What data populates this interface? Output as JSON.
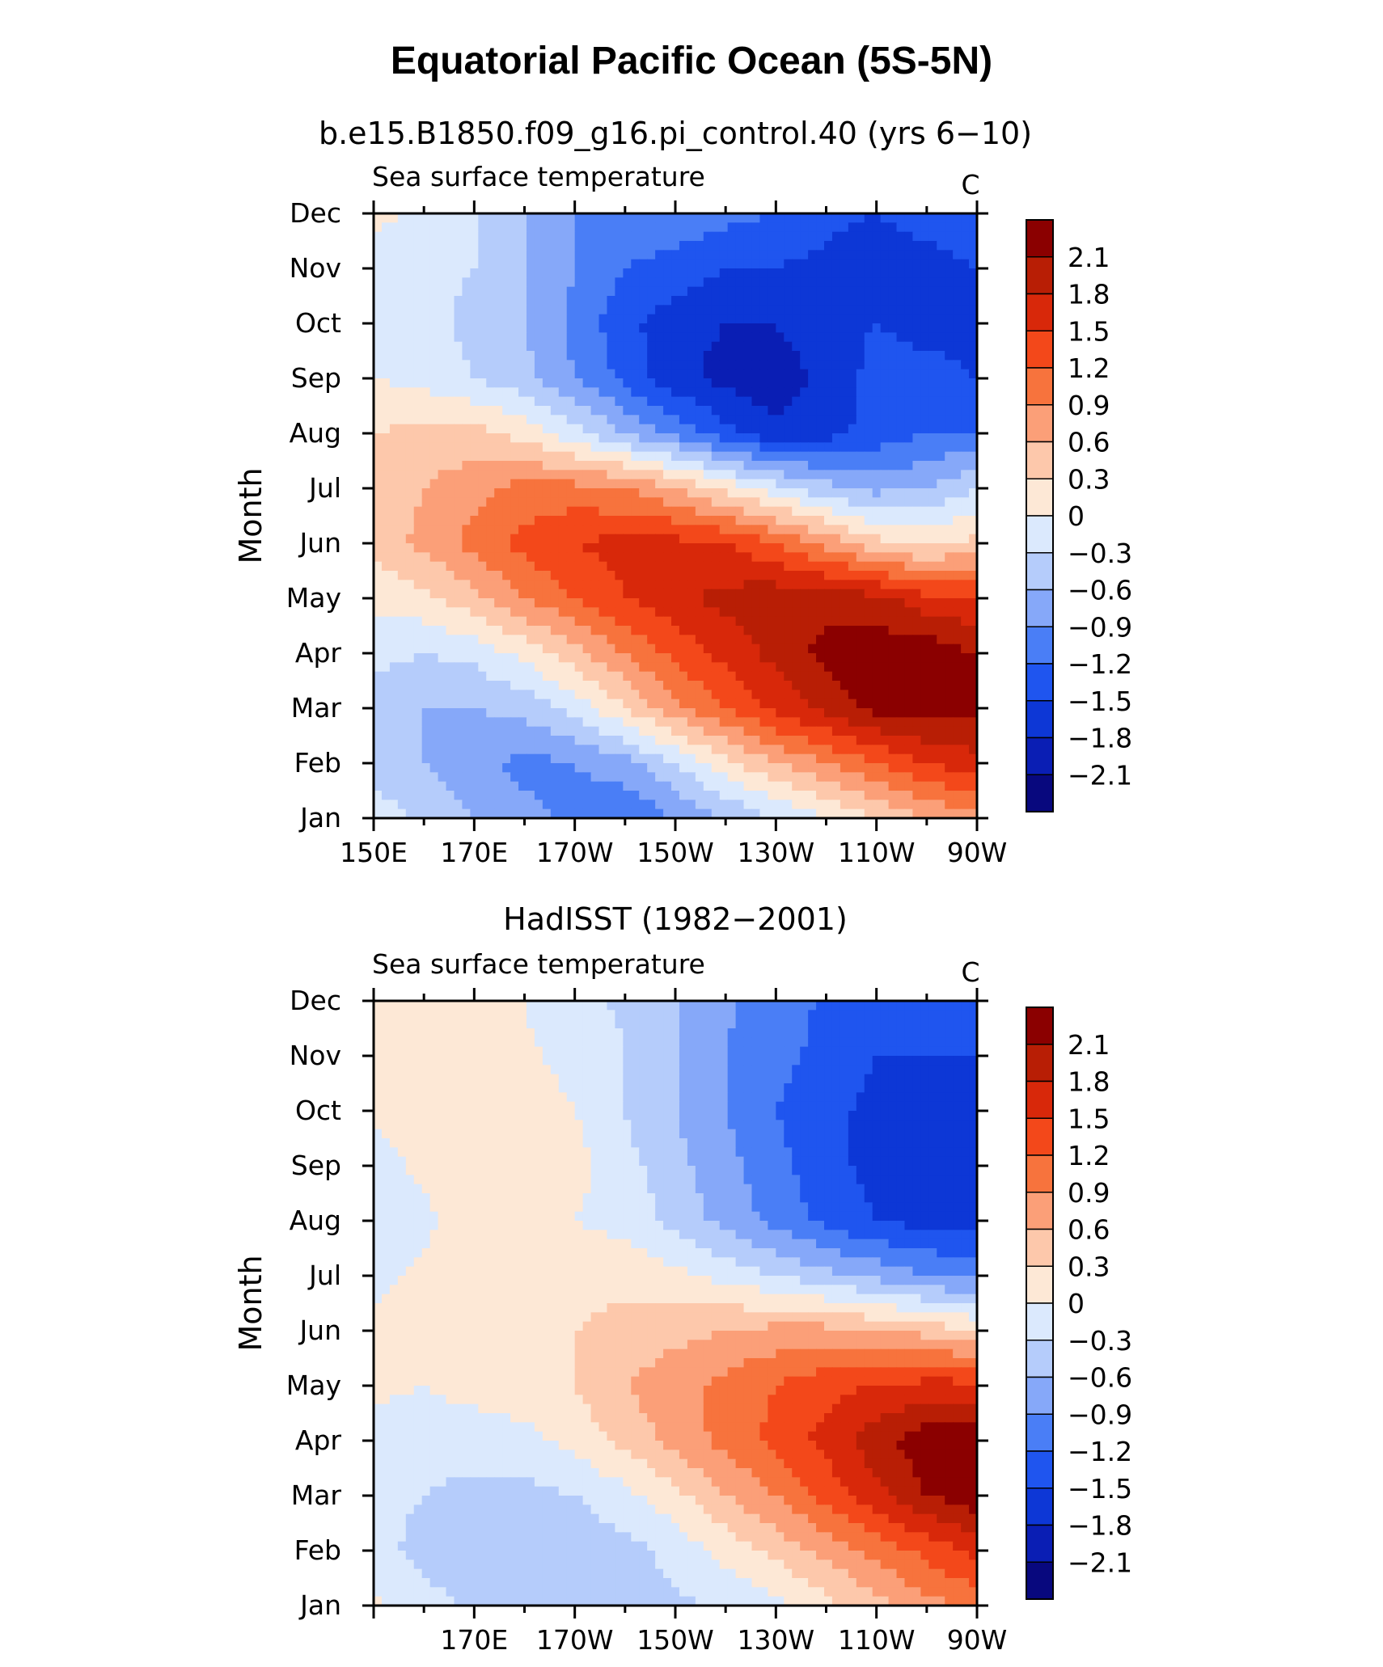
{
  "figure": {
    "title": "Equatorial Pacific Ocean (5S-5N)"
  },
  "colors": {
    "levels": [
      "-2.1",
      "-1.8",
      "-1.5",
      "-1.2",
      "-0.9",
      "-0.6",
      "-0.3",
      "0",
      "0.3",
      "0.6",
      "0.9",
      "1.2",
      "1.5",
      "1.8",
      "2.1"
    ],
    "palette": [
      "#08087e",
      "#0a1eb4",
      "#0d37d6",
      "#1f55ef",
      "#4a7ef6",
      "#86a8f9",
      "#b5ccfb",
      "#dbe9fd",
      "#fde8d6",
      "#fdc8ab",
      "#fb9f78",
      "#f7733d",
      "#f3481a",
      "#d8280a",
      "#b81e05",
      "#8b0000"
    ]
  },
  "chart_data": [
    {
      "type": "heatmap",
      "title": "b.e15.B1850.f09_g16.pi_control.40 (yrs 6−10)",
      "left_label": "Sea surface temperature",
      "right_label": "C",
      "ylabel": "Month",
      "xlabel": "",
      "x": [
        150,
        160,
        170,
        180,
        190,
        200,
        210,
        220,
        230,
        240,
        250,
        260,
        270
      ],
      "x_tick_labels": [
        "150E",
        "170E",
        "170W",
        "150W",
        "130W",
        "110W",
        "90W"
      ],
      "x_tick_values": [
        150,
        170,
        190,
        210,
        230,
        250,
        270
      ],
      "y": [
        "Jan",
        "Feb",
        "Mar",
        "Apr",
        "May",
        "Jun",
        "Jul",
        "Aug",
        "Sep",
        "Oct",
        "Nov",
        "Dec"
      ],
      "xlim": [
        150,
        270
      ],
      "ylim": [
        "Jan",
        "Dec"
      ],
      "colorbar_labels": [
        "2.1",
        "1.8",
        "1.5",
        "1.2",
        "0.9",
        "0.6",
        "0.3",
        "0",
        "−0.3",
        "−0.6",
        "−0.9",
        "−1.2",
        "−1.5",
        "−1.8",
        "−2.1"
      ],
      "values": [
        [
          -0.1,
          -0.4,
          -0.6,
          -0.8,
          -1.0,
          -1.2,
          -0.9,
          -0.6,
          -0.3,
          0.0,
          0.3,
          0.6,
          0.8
        ],
        [
          -0.5,
          -0.6,
          -0.8,
          -1.0,
          -0.9,
          -0.7,
          -0.3,
          0.2,
          0.6,
          0.9,
          1.2,
          1.5,
          1.7
        ],
        [
          -0.5,
          -0.6,
          -0.6,
          -0.5,
          -0.2,
          0.3,
          0.8,
          1.2,
          1.6,
          1.9,
          2.2,
          2.3,
          2.2
        ],
        [
          -0.2,
          -0.3,
          -0.2,
          0.1,
          0.5,
          0.9,
          1.3,
          1.6,
          1.9,
          2.2,
          2.3,
          2.3,
          2.1
        ],
        [
          0.1,
          0.2,
          0.5,
          0.9,
          1.2,
          1.5,
          1.7,
          1.9,
          2.0,
          2.0,
          1.9,
          1.6,
          1.5
        ],
        [
          0.4,
          0.7,
          1.0,
          1.3,
          1.5,
          1.6,
          1.6,
          1.5,
          1.2,
          0.8,
          0.4,
          0.2,
          0.4
        ],
        [
          0.4,
          0.6,
          0.8,
          1.0,
          1.0,
          0.9,
          0.6,
          0.2,
          -0.2,
          -0.5,
          -0.7,
          -0.6,
          -0.3
        ],
        [
          0.3,
          0.4,
          0.4,
          0.2,
          -0.2,
          -0.6,
          -1.0,
          -1.4,
          -1.7,
          -1.6,
          -1.4,
          -1.2,
          -1.2
        ],
        [
          0.0,
          -0.1,
          -0.3,
          -0.5,
          -0.9,
          -1.3,
          -1.7,
          -1.9,
          -2.0,
          -1.7,
          -1.4,
          -1.4,
          -1.5
        ],
        [
          -0.2,
          -0.2,
          -0.4,
          -0.6,
          -1.0,
          -1.4,
          -1.7,
          -1.8,
          -1.8,
          -1.6,
          -1.5,
          -1.6,
          -1.6
        ],
        [
          -0.2,
          -0.2,
          -0.3,
          -0.6,
          -0.9,
          -1.2,
          -1.3,
          -1.5,
          -1.5,
          -1.6,
          -1.8,
          -1.7,
          -1.5
        ],
        [
          0.1,
          -0.1,
          -0.3,
          -0.6,
          -0.9,
          -1.0,
          -1.0,
          -1.1,
          -1.2,
          -1.4,
          -1.5,
          -1.3,
          -1.2
        ]
      ]
    },
    {
      "type": "heatmap",
      "title": "HadISST (1982−2001)",
      "left_label": "Sea surface temperature",
      "right_label": "C",
      "ylabel": "Month",
      "xlabel": "",
      "x": [
        150,
        160,
        170,
        180,
        190,
        200,
        210,
        220,
        230,
        240,
        250,
        260,
        270
      ],
      "x_tick_labels": [
        "170E",
        "170W",
        "150W",
        "130W",
        "110W",
        "90W"
      ],
      "x_tick_values": [
        170,
        190,
        210,
        230,
        250,
        270
      ],
      "y": [
        "Jan",
        "Feb",
        "Mar",
        "Apr",
        "May",
        "Jun",
        "Jul",
        "Aug",
        "Sep",
        "Oct",
        "Nov",
        "Dec"
      ],
      "xlim": [
        150,
        270
      ],
      "ylim": [
        "Jan",
        "Dec"
      ],
      "colorbar_labels": [
        "2.1",
        "1.8",
        "1.5",
        "1.2",
        "0.9",
        "0.6",
        "0.3",
        "0",
        "−0.3",
        "−0.6",
        "−0.9",
        "−1.2",
        "−1.5",
        "−1.8",
        "−2.1"
      ],
      "values": [
        [
          0.05,
          -0.2,
          -0.35,
          -0.45,
          -0.45,
          -0.45,
          -0.35,
          -0.25,
          -0.1,
          0.2,
          0.5,
          0.8,
          1.0
        ],
        [
          -0.2,
          -0.4,
          -0.5,
          -0.55,
          -0.5,
          -0.4,
          -0.2,
          0.1,
          0.4,
          0.7,
          1.0,
          1.3,
          1.6
        ],
        [
          -0.2,
          -0.3,
          -0.4,
          -0.4,
          -0.3,
          -0.1,
          0.2,
          0.6,
          0.9,
          1.3,
          1.7,
          2.1,
          2.3
        ],
        [
          -0.1,
          -0.15,
          -0.15,
          -0.1,
          0.1,
          0.4,
          0.7,
          1.0,
          1.3,
          1.6,
          2.0,
          2.3,
          2.3
        ],
        [
          0.05,
          0.0,
          0.1,
          0.2,
          0.3,
          0.6,
          0.8,
          1.0,
          1.2,
          1.4,
          1.5,
          1.6,
          1.6
        ],
        [
          0.05,
          0.05,
          0.1,
          0.2,
          0.3,
          0.4,
          0.5,
          0.6,
          0.7,
          0.7,
          0.6,
          0.5,
          0.3
        ],
        [
          -0.05,
          0.05,
          0.1,
          0.1,
          0.2,
          0.2,
          0.1,
          -0.1,
          -0.3,
          -0.5,
          -0.7,
          -0.9,
          -1.0
        ],
        [
          -0.15,
          -0.05,
          0.1,
          0.1,
          0.0,
          -0.1,
          -0.4,
          -0.7,
          -1.0,
          -1.3,
          -1.5,
          -1.6,
          -1.6
        ],
        [
          -0.1,
          0.05,
          0.2,
          0.3,
          0.1,
          -0.2,
          -0.5,
          -0.8,
          -1.1,
          -1.4,
          -1.6,
          -1.7,
          -1.7
        ],
        [
          0.05,
          0.1,
          0.15,
          0.15,
          0.0,
          -0.3,
          -0.6,
          -0.9,
          -1.2,
          -1.4,
          -1.6,
          -1.7,
          -1.7
        ],
        [
          0.05,
          0.1,
          0.1,
          0.05,
          -0.1,
          -0.3,
          -0.6,
          -0.9,
          -1.1,
          -1.3,
          -1.5,
          -1.5,
          -1.5
        ],
        [
          0.05,
          0.1,
          0.05,
          0.0,
          -0.2,
          -0.35,
          -0.6,
          -0.85,
          -1.05,
          -1.25,
          -1.35,
          -1.3,
          -1.2
        ]
      ]
    }
  ]
}
